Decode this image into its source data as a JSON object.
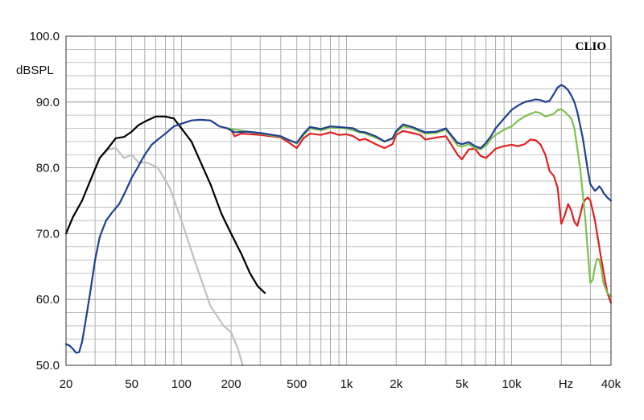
{
  "chart_data": {
    "type": "line",
    "brand": "CLIO",
    "xscale": "log",
    "xlim": [
      20,
      40000
    ],
    "ylim": [
      50,
      100
    ],
    "ylabel": "dBSPL",
    "xlabel": "Hz",
    "grid": true,
    "y_ticks": [
      "50.0",
      "60.0",
      "70.0",
      "80.0",
      "90.0",
      "100.0"
    ],
    "x_ticks": [
      {
        "value": 20,
        "label": "20"
      },
      {
        "value": 50,
        "label": "50"
      },
      {
        "value": 100,
        "label": "100"
      },
      {
        "value": 200,
        "label": "200"
      },
      {
        "value": 500,
        "label": "500"
      },
      {
        "value": 1000,
        "label": "1k"
      },
      {
        "value": 2000,
        "label": "2k"
      },
      {
        "value": 5000,
        "label": "5k"
      },
      {
        "value": 10000,
        "label": "10k"
      },
      {
        "value": 40000,
        "label": "40k"
      }
    ],
    "series": [
      {
        "color": "#c0c0c0",
        "points": [
          [
            28,
            78
          ],
          [
            32,
            81.5
          ],
          [
            36,
            82.8
          ],
          [
            40,
            83
          ],
          [
            45,
            81.5
          ],
          [
            50,
            82
          ],
          [
            55,
            80.8
          ],
          [
            62,
            80.8
          ],
          [
            72,
            80
          ],
          [
            85,
            77
          ],
          [
            100,
            72
          ],
          [
            120,
            66
          ],
          [
            150,
            59
          ],
          [
            180,
            56
          ],
          [
            200,
            55
          ],
          [
            220,
            52.5
          ],
          [
            235,
            50
          ]
        ]
      },
      {
        "color": "#000000",
        "points": [
          [
            20,
            70
          ],
          [
            22,
            72.5
          ],
          [
            25,
            75
          ],
          [
            28,
            78
          ],
          [
            32,
            81.5
          ],
          [
            36,
            83
          ],
          [
            40,
            84.5
          ],
          [
            45,
            84.7
          ],
          [
            50,
            85.5
          ],
          [
            55,
            86.5
          ],
          [
            62,
            87.2
          ],
          [
            70,
            87.8
          ],
          [
            80,
            87.8
          ],
          [
            90,
            87.5
          ],
          [
            100,
            86
          ],
          [
            115,
            84
          ],
          [
            130,
            81
          ],
          [
            150,
            77.5
          ],
          [
            175,
            73
          ],
          [
            200,
            70
          ],
          [
            230,
            67
          ],
          [
            260,
            64
          ],
          [
            290,
            62
          ],
          [
            320,
            61
          ]
        ]
      },
      {
        "color": "#e02020",
        "points": [
          [
            190,
            86
          ],
          [
            200,
            85.8
          ],
          [
            210,
            84.8
          ],
          [
            230,
            85.2
          ],
          [
            300,
            85
          ],
          [
            400,
            84.6
          ],
          [
            450,
            83.8
          ],
          [
            500,
            83
          ],
          [
            550,
            84.5
          ],
          [
            600,
            85.2
          ],
          [
            700,
            85
          ],
          [
            800,
            85.4
          ],
          [
            900,
            85
          ],
          [
            1000,
            85.1
          ],
          [
            1100,
            84.8
          ],
          [
            1200,
            84.2
          ],
          [
            1300,
            84.4
          ],
          [
            1500,
            83.6
          ],
          [
            1700,
            83
          ],
          [
            1900,
            83.6
          ],
          [
            2000,
            85
          ],
          [
            2200,
            85.6
          ],
          [
            2500,
            85.3
          ],
          [
            2800,
            85
          ],
          [
            3000,
            84.3
          ],
          [
            3500,
            84.6
          ],
          [
            4000,
            84.8
          ],
          [
            4300,
            83.6
          ],
          [
            4700,
            82
          ],
          [
            5000,
            81.3
          ],
          [
            5500,
            82.8
          ],
          [
            6000,
            82.9
          ],
          [
            6500,
            81.8
          ],
          [
            7000,
            81.5
          ],
          [
            7500,
            82.2
          ],
          [
            8000,
            82.9
          ],
          [
            9000,
            83.3
          ],
          [
            10000,
            83.5
          ],
          [
            11000,
            83.3
          ],
          [
            12000,
            83.6
          ],
          [
            13000,
            84.3
          ],
          [
            14000,
            84.2
          ],
          [
            15000,
            83.5
          ],
          [
            16000,
            82
          ],
          [
            17000,
            79.5
          ],
          [
            18000,
            78.8
          ],
          [
            19000,
            77
          ],
          [
            20000,
            71.5
          ],
          [
            21000,
            72.8
          ],
          [
            22000,
            74.5
          ],
          [
            23000,
            73.5
          ],
          [
            24000,
            71.8
          ],
          [
            25000,
            71.2
          ],
          [
            26000,
            72.8
          ],
          [
            27000,
            74.5
          ],
          [
            28000,
            75.2
          ],
          [
            29000,
            75.5
          ],
          [
            30000,
            75
          ],
          [
            32000,
            72
          ],
          [
            35000,
            66
          ],
          [
            38000,
            61
          ],
          [
            40000,
            59.5
          ]
        ]
      },
      {
        "color": "#7fbf50",
        "points": [
          [
            190,
            86
          ],
          [
            300,
            85.2
          ],
          [
            400,
            84.7
          ],
          [
            500,
            83.7
          ],
          [
            550,
            85
          ],
          [
            600,
            86
          ],
          [
            700,
            85.7
          ],
          [
            800,
            86.1
          ],
          [
            1000,
            86
          ],
          [
            1200,
            85.4
          ],
          [
            1300,
            85.2
          ],
          [
            1500,
            84.6
          ],
          [
            1700,
            84
          ],
          [
            1900,
            84.4
          ],
          [
            2000,
            85.4
          ],
          [
            2200,
            86.3
          ],
          [
            2500,
            86
          ],
          [
            3000,
            85.2
          ],
          [
            3500,
            85.3
          ],
          [
            4000,
            85.8
          ],
          [
            4300,
            84.8
          ],
          [
            4700,
            83.4
          ],
          [
            5000,
            83.2
          ],
          [
            5500,
            83.6
          ],
          [
            6000,
            83
          ],
          [
            6500,
            82.8
          ],
          [
            7000,
            83.4
          ],
          [
            7500,
            84.4
          ],
          [
            8000,
            85
          ],
          [
            9000,
            85.8
          ],
          [
            10000,
            86.3
          ],
          [
            11000,
            87.2
          ],
          [
            12000,
            87.8
          ],
          [
            13000,
            88.2
          ],
          [
            14000,
            88.5
          ],
          [
            15000,
            88.3
          ],
          [
            16000,
            87.8
          ],
          [
            17000,
            88
          ],
          [
            18000,
            88.2
          ],
          [
            19000,
            88.8
          ],
          [
            20000,
            88.9
          ],
          [
            21000,
            88.5
          ],
          [
            22000,
            88
          ],
          [
            23000,
            87.5
          ],
          [
            24000,
            86
          ],
          [
            25000,
            83
          ],
          [
            26000,
            80
          ],
          [
            27000,
            76
          ],
          [
            28000,
            72
          ],
          [
            29000,
            67
          ],
          [
            30000,
            62.5
          ],
          [
            31000,
            63
          ],
          [
            32000,
            65
          ],
          [
            33000,
            66.2
          ],
          [
            34000,
            66
          ],
          [
            35000,
            64.5
          ],
          [
            36000,
            62.5
          ],
          [
            38000,
            61
          ],
          [
            40000,
            60.5
          ]
        ]
      },
      {
        "color": "#1f3f90",
        "points": [
          [
            20,
            53.2
          ],
          [
            21,
            53
          ],
          [
            22,
            52.5
          ],
          [
            23,
            51.9
          ],
          [
            24,
            52
          ],
          [
            25,
            53.5
          ],
          [
            26,
            56
          ],
          [
            28,
            61
          ],
          [
            30,
            66
          ],
          [
            32,
            69.5
          ],
          [
            35,
            72
          ],
          [
            38,
            73.2
          ],
          [
            42,
            74.5
          ],
          [
            46,
            76.5
          ],
          [
            50,
            78.5
          ],
          [
            55,
            80.3
          ],
          [
            60,
            82
          ],
          [
            66,
            83.5
          ],
          [
            72,
            84.3
          ],
          [
            80,
            85.2
          ],
          [
            90,
            86.3
          ],
          [
            100,
            86.7
          ],
          [
            115,
            87.2
          ],
          [
            130,
            87.3
          ],
          [
            150,
            87.2
          ],
          [
            170,
            86.3
          ],
          [
            190,
            86
          ],
          [
            210,
            85.4
          ],
          [
            250,
            85.5
          ],
          [
            300,
            85.3
          ],
          [
            400,
            84.8
          ],
          [
            450,
            84.2
          ],
          [
            500,
            83.8
          ],
          [
            550,
            85.2
          ],
          [
            600,
            86.2
          ],
          [
            700,
            85.9
          ],
          [
            800,
            86.3
          ],
          [
            900,
            86.2
          ],
          [
            1000,
            86.1
          ],
          [
            1100,
            86
          ],
          [
            1200,
            85.5
          ],
          [
            1300,
            85.4
          ],
          [
            1500,
            84.8
          ],
          [
            1700,
            84
          ],
          [
            1900,
            84.5
          ],
          [
            2000,
            85.6
          ],
          [
            2200,
            86.6
          ],
          [
            2500,
            86.2
          ],
          [
            3000,
            85.4
          ],
          [
            3500,
            85.5
          ],
          [
            4000,
            86
          ],
          [
            4300,
            85
          ],
          [
            4700,
            83.8
          ],
          [
            5000,
            83.6
          ],
          [
            5500,
            83.9
          ],
          [
            6000,
            83.3
          ],
          [
            6500,
            83
          ],
          [
            7000,
            83.8
          ],
          [
            7500,
            84.8
          ],
          [
            8000,
            86
          ],
          [
            9000,
            87.5
          ],
          [
            10000,
            88.8
          ],
          [
            11000,
            89.5
          ],
          [
            12000,
            90
          ],
          [
            13000,
            90.2
          ],
          [
            14000,
            90.4
          ],
          [
            15000,
            90.3
          ],
          [
            16000,
            90
          ],
          [
            17000,
            90.2
          ],
          [
            18000,
            91.2
          ],
          [
            19000,
            92.2
          ],
          [
            20000,
            92.6
          ],
          [
            21000,
            92.3
          ],
          [
            22000,
            91.8
          ],
          [
            23000,
            91
          ],
          [
            24000,
            90
          ],
          [
            25000,
            88.5
          ],
          [
            26000,
            86.5
          ],
          [
            27000,
            84.5
          ],
          [
            28000,
            82
          ],
          [
            29000,
            79.5
          ],
          [
            30000,
            77.5
          ],
          [
            31000,
            77
          ],
          [
            32000,
            76.5
          ],
          [
            33000,
            76.8
          ],
          [
            34000,
            77.2
          ],
          [
            35000,
            76.8
          ],
          [
            36000,
            76.2
          ],
          [
            38000,
            75.5
          ],
          [
            40000,
            75
          ]
        ]
      }
    ]
  }
}
